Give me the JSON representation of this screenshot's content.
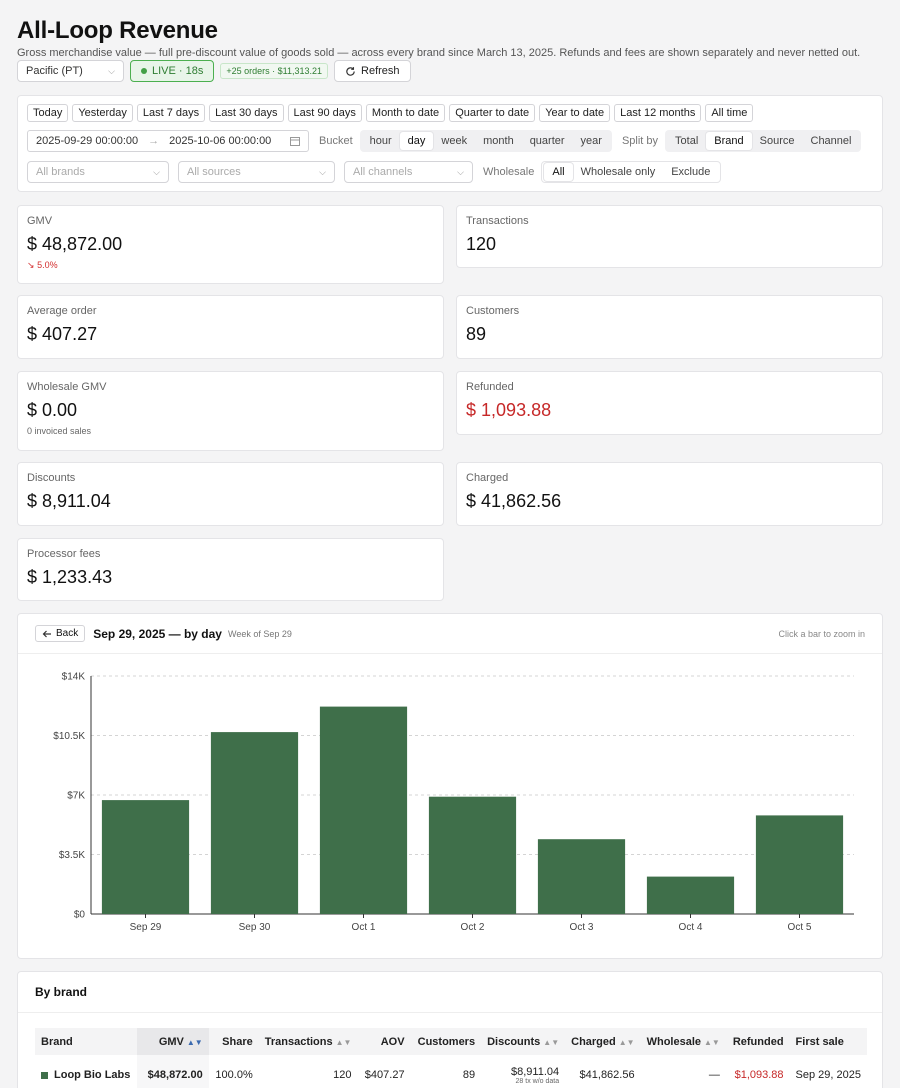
{
  "header": {
    "title": "All-Loop Revenue",
    "subtitle": "Gross merchandise value — full pre-discount value of goods sold — across every brand since March 13, 2025. Refunds and fees are shown separately and never netted out.",
    "timezone": "Pacific (PT)",
    "live_label": "LIVE · 18s",
    "new_orders_badge": "+25 orders · $11,313.21",
    "refresh_label": "Refresh"
  },
  "filters": {
    "ranges": [
      "Today",
      "Yesterday",
      "Last 7 days",
      "Last 30 days",
      "Last 90 days",
      "Month to date",
      "Quarter to date",
      "Year to date",
      "Last 12 months",
      "All time"
    ],
    "date_from": "2025-09-29 00:00:00",
    "date_arrow": "→",
    "date_to": "2025-10-06 00:00:00",
    "bucket_label": "Bucket",
    "buckets": [
      "hour",
      "day",
      "week",
      "month",
      "quarter",
      "year"
    ],
    "bucket_selected": "day",
    "split_label": "Split by",
    "splits": [
      "Total",
      "Brand",
      "Source",
      "Channel"
    ],
    "split_selected": "Brand",
    "brands_placeholder": "All brands",
    "sources_placeholder": "All sources",
    "channels_placeholder": "All channels",
    "wholesale_label": "Wholesale",
    "wholesale_options": [
      "All",
      "Wholesale only",
      "Exclude"
    ],
    "wholesale_selected": "All"
  },
  "metrics": {
    "gmv": {
      "label": "GMV",
      "currency": "$",
      "value": "48,872.00",
      "delta": "5.0%"
    },
    "transactions": {
      "label": "Transactions",
      "value": "120"
    },
    "avg_order": {
      "label": "Average order",
      "currency": "$",
      "value": "407.27"
    },
    "customers": {
      "label": "Customers",
      "value": "89"
    },
    "wholesale_gmv": {
      "label": "Wholesale GMV",
      "currency": "$",
      "value": "0.00",
      "note": "0 invoiced sales"
    },
    "refunded": {
      "label": "Refunded",
      "currency": "$",
      "value": "1,093.88"
    },
    "discounts": {
      "label": "Discounts",
      "currency": "$",
      "value": "8,911.04"
    },
    "charged": {
      "label": "Charged",
      "currency": "$",
      "value": "41,862.56"
    },
    "processor_fees": {
      "label": "Processor fees",
      "currency": "$",
      "value": "1,233.43"
    }
  },
  "chart": {
    "back_label": "Back",
    "title": "Sep 29, 2025 — by day",
    "subtitle": "Week of Sep 29",
    "hint": "Click a bar to zoom in",
    "bar_color": "#3f6f4a"
  },
  "chart_data": {
    "type": "bar",
    "categories": [
      "Sep 29",
      "Sep 30",
      "Oct 1",
      "Oct 2",
      "Oct 3",
      "Oct 4",
      "Oct 5"
    ],
    "values": [
      6700,
      10700,
      12200,
      6900,
      4400,
      2200,
      5800
    ],
    "ylim": [
      0,
      14000
    ],
    "yticks": [
      0,
      3500,
      7000,
      10500,
      14000
    ],
    "ytick_labels": [
      "$0",
      "$3.5K",
      "$7K",
      "$10.5K",
      "$14K"
    ],
    "grid": true
  },
  "brand_table": {
    "title": "By brand",
    "columns": [
      "Brand",
      "GMV",
      "Share",
      "Transactions",
      "AOV",
      "Customers",
      "Discounts",
      "Charged",
      "Wholesale",
      "Refunded",
      "First sale"
    ],
    "rows": [
      {
        "brand": "Loop Bio Labs",
        "swatch": "#3f6f4a",
        "gmv": "$48,872.00",
        "share": "100.0%",
        "transactions": "120",
        "aov": "$407.27",
        "customers": "89",
        "discounts": "$8,911.04",
        "discounts_note": "28 tx w/o data",
        "charged": "$41,862.56",
        "wholesale": "—",
        "refunded": "$1,093.88",
        "first_sale": "Sep 29, 2025"
      }
    ]
  }
}
